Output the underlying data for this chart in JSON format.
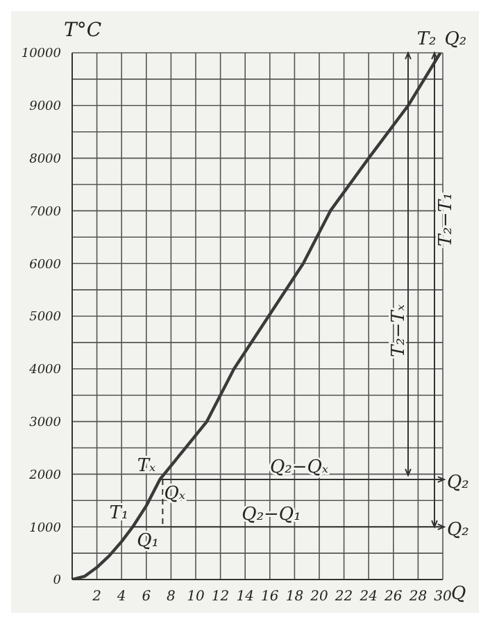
{
  "chart_data": {
    "type": "line",
    "ylabel": "T°C",
    "xlabel": "Q",
    "x": [
      0,
      1,
      2,
      3,
      4,
      4.9,
      6,
      7.1,
      9,
      10.9,
      13.1,
      15.9,
      18.7,
      20.9,
      24.0,
      27.2,
      29.8
    ],
    "series": [
      {
        "color": "#3a3a3a",
        "values": [
          0,
          60,
          230,
          450,
          720,
          1000,
          1400,
          1900,
          2450,
          3000,
          4000,
          5000,
          6000,
          7000,
          8000,
          9000,
          10000
        ]
      }
    ],
    "xlim": [
      0,
      30
    ],
    "xticks": [
      2,
      4,
      6,
      8,
      10,
      12,
      14,
      16,
      18,
      20,
      22,
      24,
      26,
      28,
      30
    ],
    "ylim": [
      0,
      10000
    ],
    "yticks": [
      0,
      {
        "value": 500,
        "label": null
      },
      1000,
      {
        "value": 1500,
        "label": null
      },
      2000,
      {
        "value": 2500,
        "label": null
      },
      3000,
      {
        "value": 3500,
        "label": null
      },
      4000,
      {
        "value": 4500,
        "label": null
      },
      5000,
      {
        "value": 5500,
        "label": null
      },
      6000,
      {
        "value": 6500,
        "label": null
      },
      7000,
      {
        "value": 7500,
        "label": null
      },
      8000,
      {
        "value": 8500,
        "label": null
      },
      9000,
      {
        "value": 9500,
        "label": null
      },
      10000
    ],
    "grid": true,
    "marker": "none",
    "line_style": "solid",
    "legend": false,
    "annotations": [
      {
        "text": "T₁",
        "x": 4.9,
        "y": 1000
      },
      {
        "text": "Q₁",
        "x": 4.9,
        "y": 1000
      },
      {
        "text": "Tₓ",
        "x": 7.1,
        "y": 1900
      },
      {
        "text": "Qₓ",
        "x": 7.1,
        "y": 1900
      },
      {
        "text": "T₂",
        "x": 29.8,
        "y": 10000
      },
      {
        "text": "Q₂",
        "x": 29.8,
        "y": 10000
      },
      "Q₂−Q₁",
      "Q₂−Qₓ",
      "Q₂",
      "Q₂",
      "T₂−T₁",
      "T₂−Tₓ"
    ]
  }
}
